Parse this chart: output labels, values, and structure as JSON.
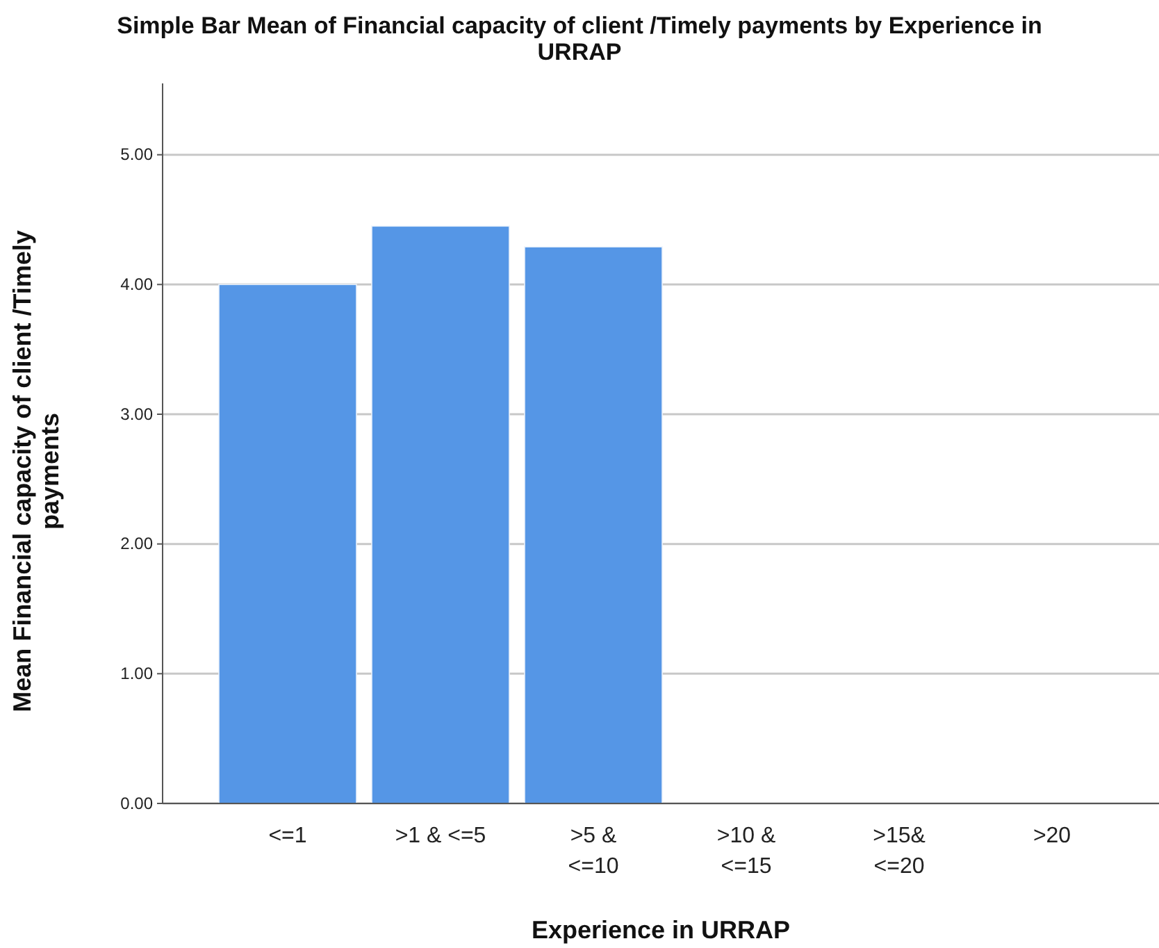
{
  "chart_data": {
    "type": "bar",
    "title": "Simple Bar Mean of Financial capacity of client /Timely payments  by Experience in URRAP",
    "xlabel": "Experience in URRAP",
    "ylabel": "Mean Financial capacity of client /Timely payments",
    "categories": [
      "<=1",
      ">1 & <=5",
      ">5 & <=10",
      ">10 & <=15",
      ">15& <=20",
      ">20"
    ],
    "values": [
      4.0,
      4.45,
      4.29,
      null,
      null,
      null
    ],
    "color": "#5596e6",
    "ylim": [
      0,
      5.55
    ],
    "yticks": [
      {
        "value": 0,
        "label": "0.00"
      },
      {
        "value": 1,
        "label": "1.00"
      },
      {
        "value": 2,
        "label": "2.00"
      },
      {
        "value": 3,
        "label": "3.00"
      },
      {
        "value": 4,
        "label": "4.00"
      },
      {
        "value": 5,
        "label": "5.00"
      }
    ],
    "grid": "y"
  }
}
